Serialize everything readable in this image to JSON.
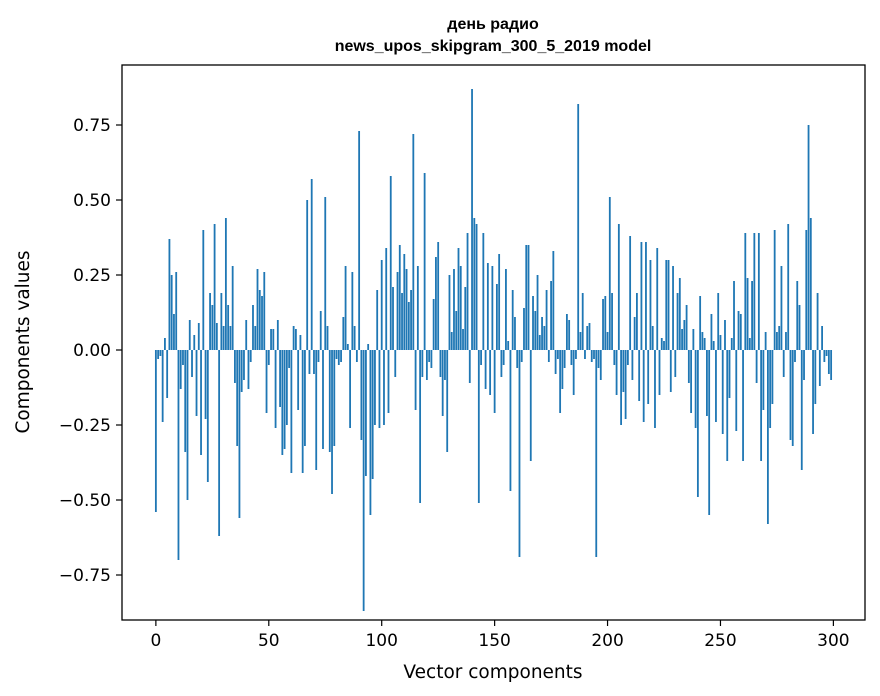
{
  "chart_data": {
    "type": "bar",
    "title_line1": "день радио",
    "title_line2": "news_upos_skipgram_300_5_2019 model",
    "xlabel": "Vector components",
    "ylabel": "Components values",
    "xlim": [
      -15,
      314
    ],
    "ylim": [
      -0.9,
      0.95
    ],
    "xticks": [
      0,
      50,
      100,
      150,
      200,
      250,
      300
    ],
    "xtick_labels": [
      "0",
      "50",
      "100",
      "150",
      "200",
      "250",
      "300"
    ],
    "yticks": [
      -0.75,
      -0.5,
      -0.25,
      0.0,
      0.25,
      0.5,
      0.75
    ],
    "ytick_labels": [
      "−0.75",
      "−0.50",
      "−0.25",
      "0.00",
      "0.25",
      "0.50",
      "0.75"
    ],
    "grid": false,
    "bar_color": "#1f77b4",
    "values": [
      -0.54,
      -0.03,
      -0.02,
      -0.24,
      0.04,
      -0.16,
      0.37,
      0.25,
      0.12,
      0.26,
      -0.7,
      -0.13,
      -0.05,
      -0.34,
      -0.5,
      0.1,
      -0.09,
      0.05,
      -0.22,
      0.09,
      -0.35,
      0.4,
      -0.23,
      -0.44,
      0.19,
      0.15,
      0.42,
      0.09,
      -0.62,
      0.19,
      0.08,
      0.44,
      0.15,
      0.08,
      0.28,
      -0.11,
      -0.32,
      -0.56,
      -0.14,
      -0.1,
      0.1,
      -0.13,
      -0.04,
      0.15,
      0.08,
      0.27,
      0.2,
      0.18,
      0.26,
      -0.21,
      -0.05,
      0.07,
      0.07,
      -0.26,
      0.1,
      -0.19,
      -0.35,
      -0.33,
      -0.25,
      -0.06,
      -0.41,
      0.08,
      0.07,
      -0.2,
      0.05,
      -0.41,
      -0.32,
      0.5,
      -0.08,
      0.57,
      -0.08,
      -0.4,
      -0.04,
      0.13,
      -0.33,
      0.51,
      0.08,
      -0.34,
      -0.48,
      -0.32,
      -0.03,
      -0.05,
      -0.04,
      0.11,
      0.28,
      0.02,
      -0.26,
      0.26,
      0.08,
      -0.04,
      0.73,
      -0.3,
      -0.87,
      -0.42,
      0.02,
      -0.55,
      -0.43,
      -0.25,
      0.2,
      -0.26,
      0.3,
      -0.25,
      0.34,
      -0.21,
      0.58,
      0.21,
      -0.09,
      0.26,
      0.35,
      0.19,
      0.32,
      0.27,
      0.16,
      0.2,
      0.72,
      -0.2,
      0.28,
      -0.51,
      -0.09,
      0.59,
      -0.1,
      -0.04,
      -0.06,
      0.17,
      0.31,
      0.36,
      -0.09,
      -0.22,
      -0.1,
      -0.34,
      0.25,
      0.06,
      0.27,
      0.13,
      0.34,
      0.28,
      0.07,
      0.21,
      0.39,
      -0.11,
      0.87,
      0.44,
      0.42,
      -0.51,
      -0.05,
      0.39,
      -0.13,
      0.29,
      -0.15,
      0.28,
      -0.21,
      0.22,
      0.32,
      -0.09,
      -0.05,
      0.27,
      0.03,
      -0.47,
      0.2,
      0.11,
      -0.06,
      -0.69,
      -0.04,
      0.14,
      0.35,
      0.35,
      -0.37,
      0.18,
      0.13,
      0.25,
      0.05,
      0.11,
      0.08,
      0.2,
      -0.04,
      0.23,
      0.33,
      -0.08,
      -0.03,
      -0.21,
      -0.13,
      -0.06,
      0.12,
      0.1,
      -0.05,
      -0.15,
      -0.03,
      0.82,
      0.06,
      0.19,
      -0.03,
      0.08,
      0.09,
      -0.04,
      -0.03,
      -0.69,
      -0.06,
      -0.1,
      0.17,
      0.18,
      0.06,
      0.51,
      0.19,
      -0.05,
      -0.15,
      0.42,
      -0.25,
      -0.14,
      -0.23,
      -0.05,
      0.38,
      -0.1,
      0.11,
      0.19,
      -0.17,
      0.36,
      -0.24,
      0.36,
      -0.18,
      0.3,
      0.08,
      -0.26,
      0.34,
      -0.15,
      0.04,
      0.03,
      0.3,
      0.3,
      -0.14,
      0.28,
      -0.09,
      0.19,
      0.24,
      0.07,
      0.1,
      0.15,
      -0.11,
      -0.21,
      0.07,
      -0.26,
      -0.49,
      0.18,
      0.06,
      0.04,
      -0.22,
      -0.55,
      0.12,
      0.03,
      -0.24,
      0.19,
      0.05,
      -0.28,
      0.1,
      -0.37,
      -0.16,
      0.04,
      0.23,
      -0.27,
      0.13,
      0.12,
      -0.37,
      0.39,
      0.24,
      0.04,
      0.23,
      0.39,
      -0.11,
      0.39,
      -0.37,
      -0.2,
      0.06,
      -0.58,
      -0.26,
      -0.18,
      0.4,
      0.06,
      0.08,
      0.28,
      -0.09,
      0.06,
      0.42,
      -0.3,
      -0.32,
      -0.04,
      0.23,
      0.15,
      -0.4,
      -0.1,
      0.4,
      0.75,
      0.44,
      -0.28,
      -0.18,
      0.19,
      -0.12,
      0.08,
      -0.04,
      -0.02,
      -0.08,
      -0.1
    ]
  }
}
